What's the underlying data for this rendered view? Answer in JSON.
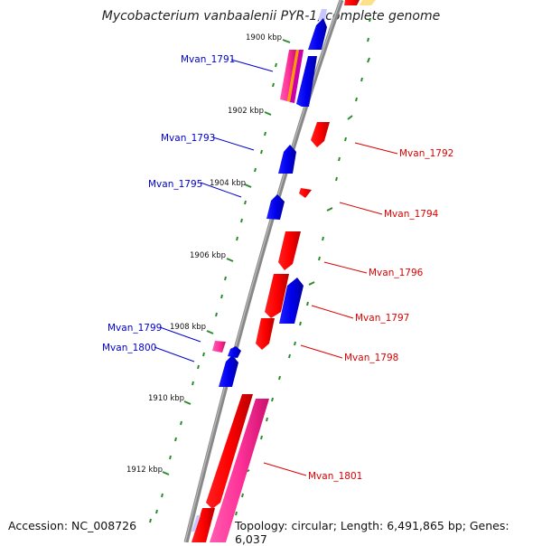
{
  "title": "Mycobacterium vanbaalenii PYR-1, complete genome",
  "footer": {
    "accession": "Accession: NC_008726",
    "summary": "Topology: circular; Length: 6,491,865 bp; Genes: 6,037"
  },
  "colors": {
    "backbone": "#888888",
    "tick": "#2e8b2e",
    "forward_gene": "#ff0000",
    "reverse_gene": "#0000ee",
    "rna_gene": "#ff3399",
    "label_left": "#0000cc",
    "label_right": "#dd0000"
  },
  "ticks": [
    "1900 kbp",
    "1902 kbp",
    "1904 kbp",
    "1906 kbp",
    "1908 kbp",
    "1910 kbp",
    "1912 kbp"
  ],
  "labels_left": [
    "Mvan_1791",
    "Mvan_1793",
    "Mvan_1795",
    "Mvan_1799",
    "Mvan_1800"
  ],
  "labels_right": [
    "Mvan_1792",
    "Mvan_1794",
    "Mvan_1796",
    "Mvan_1797",
    "Mvan_1798",
    "Mvan_1801"
  ]
}
